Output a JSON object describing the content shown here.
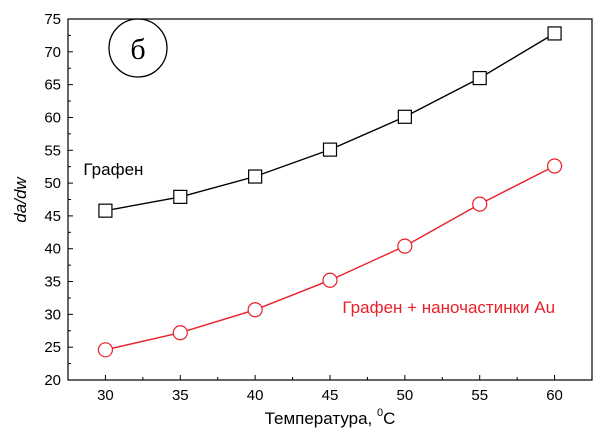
{
  "chart_data": {
    "type": "line",
    "panel_label": "б",
    "xlabel": "Температура, ",
    "xlabel_sup": "0",
    "xlabel_unit": "C",
    "ylabel": "da/dw",
    "xlim": [
      27.5,
      62.5
    ],
    "ylim": [
      20,
      75
    ],
    "xticks": [
      30,
      35,
      40,
      45,
      50,
      55,
      60
    ],
    "yticks": [
      20,
      25,
      30,
      35,
      40,
      45,
      50,
      55,
      60,
      65,
      70,
      75
    ],
    "grid": false,
    "x": [
      30,
      35,
      40,
      45,
      50,
      55,
      60
    ],
    "series": [
      {
        "name": "Графен",
        "color": "#000000",
        "marker": "square",
        "values": [
          45.8,
          47.9,
          51.0,
          55.1,
          60.1,
          66.0,
          72.8
        ],
        "label_anchor": {
          "x": 30,
          "y": 51.2
        }
      },
      {
        "name": "Графен + наночастинки Au",
        "color": "#e8202a",
        "marker": "circle",
        "values": [
          24.6,
          27.2,
          30.7,
          35.2,
          40.4,
          46.8,
          52.6
        ],
        "label_anchor": {
          "x": 47.3,
          "y": 30.2
        }
      }
    ]
  }
}
